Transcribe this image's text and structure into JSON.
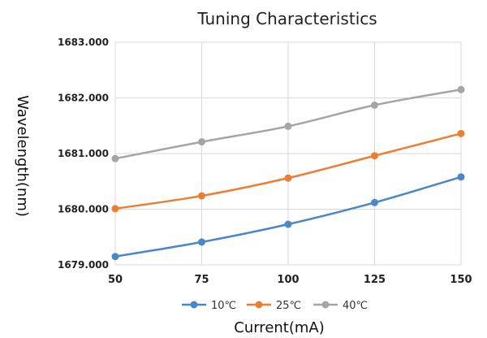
{
  "chart_data": {
    "type": "line",
    "title": "Tuning Characteristics",
    "xlabel": "Current(mA)",
    "ylabel": "Wavelength(nm)",
    "x": [
      50,
      75,
      100,
      125,
      150
    ],
    "x_tick_labels": [
      "50",
      "75",
      "100",
      "125",
      "150"
    ],
    "ylim": [
      1679.0,
      1683.0
    ],
    "y_ticks": [
      1679.0,
      1680.0,
      1681.0,
      1682.0,
      1683.0
    ],
    "y_tick_labels": [
      "1679.000",
      "1680.000",
      "1681.000",
      "1682.000",
      "1683.000"
    ],
    "grid": "both",
    "legend_position": "bottom",
    "series": [
      {
        "name": "10℃",
        "color": "#4a86c8",
        "values": [
          1679.15,
          1679.41,
          1679.73,
          1680.12,
          1680.58
        ]
      },
      {
        "name": "25℃",
        "color": "#ed7d31",
        "values": [
          1680.01,
          1680.24,
          1680.56,
          1680.96,
          1681.36
        ]
      },
      {
        "name": "40℃",
        "color": "#a5a5a5",
        "values": [
          1680.91,
          1681.21,
          1681.49,
          1681.87,
          1682.15
        ]
      }
    ]
  }
}
